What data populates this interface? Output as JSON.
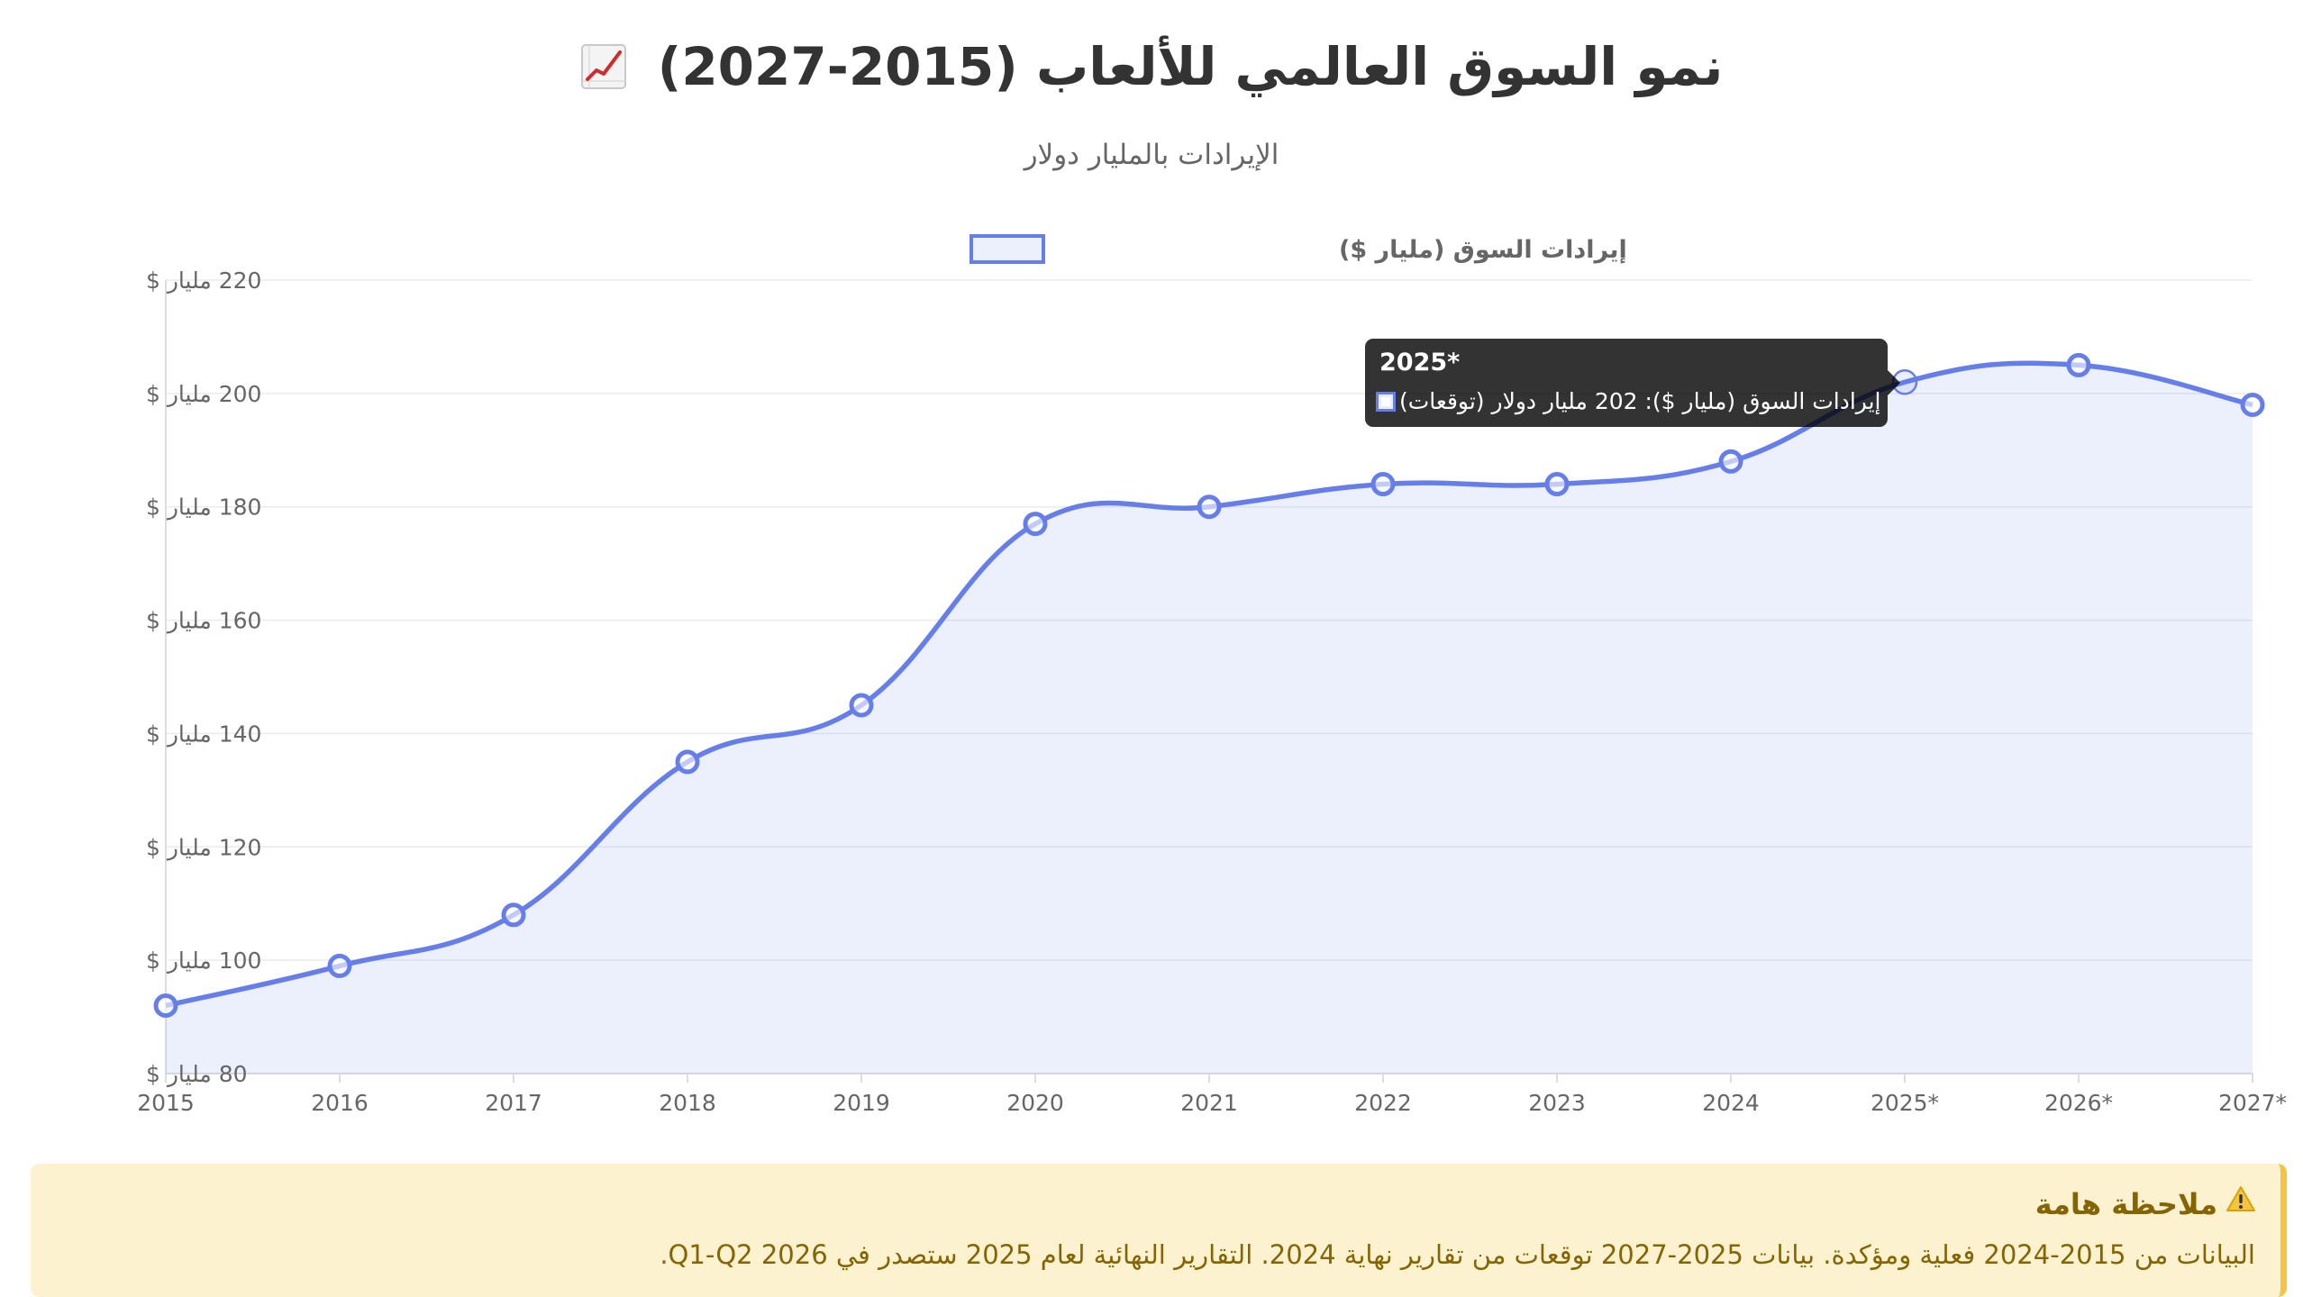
{
  "chart_data": {
    "type": "line",
    "title": "نمو السوق العالمي للألعاب (2015-2027)",
    "title_icon": "chart-increasing-icon",
    "subtitle": "الإيرادات بالمليار دولار",
    "categories": [
      "2015",
      "2016",
      "2017",
      "2018",
      "2019",
      "2020",
      "2021",
      "2022",
      "2023",
      "2024",
      "2025*",
      "2026*",
      "2027*"
    ],
    "series": [
      {
        "name": "إيرادات السوق (مليار $)",
        "values": [
          92,
          99,
          108,
          135,
          145,
          177,
          180,
          184,
          184,
          188,
          202,
          205,
          198
        ],
        "color": "#667eea",
        "fill": "rgba(102,126,234,0.12)"
      }
    ],
    "ylim": [
      80,
      220
    ],
    "y_ticks": [
      80,
      100,
      120,
      140,
      160,
      180,
      200,
      220
    ],
    "y_tick_format": "{v} مليار $",
    "grid": true,
    "legend_position": "top",
    "curve": "smooth"
  },
  "tooltip": {
    "title": "2025*",
    "text": "إيرادات السوق (مليار $): 202 مليار دولار (توقعات)"
  },
  "note": {
    "icon": "warning-icon",
    "title": "ملاحظة هامة",
    "text": "البيانات من 2015-2024 فعلية ومؤكدة. بيانات 2025-2027 توقعات من تقارير نهاية 2024. التقارير النهائية لعام 2025 ستصدر في Q1-Q2 2026."
  },
  "colors": {
    "line": "#667eea",
    "grid": "#ebebeb",
    "text": "#666666",
    "title": "#333333",
    "note_bg": "#fdf2d0",
    "note_border": "#f6c445",
    "note_text": "#856404"
  }
}
